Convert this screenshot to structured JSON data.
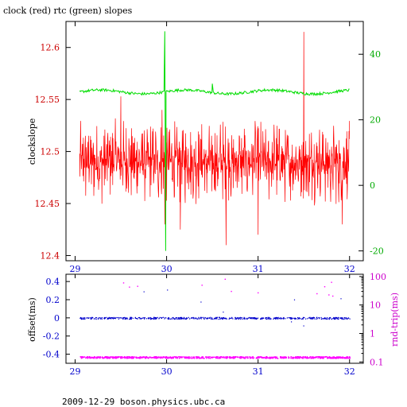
{
  "title": "clock (red) rtc (green) slopes",
  "footer": "2009-12-29  boson.physics.ubc.ca",
  "colors": {
    "clock": "#ff0000",
    "rtc": "#00dd00",
    "offset": "#0000cc",
    "rndtrip": "#ff00ff",
    "x_axis": "#0000cc",
    "left_axis_top": "#cc0000",
    "right_axis_top": "#00aa00",
    "left_axis_bottom": "#0000cc",
    "right_axis_bottom": "#cc00cc"
  },
  "chart_data": [
    {
      "type": "line",
      "title": "clock (red) rtc (green) slopes",
      "xlim": [
        28.9,
        32.15
      ],
      "xticks": [
        29,
        30,
        31,
        32
      ],
      "xtick_labels": [
        "29",
        "30",
        "31",
        "32"
      ],
      "left_axis": {
        "label": "clockslope",
        "ylim": [
          12.395,
          12.625
        ],
        "ticks": [
          12.4,
          12.45,
          12.5,
          12.55,
          12.6
        ],
        "tick_labels": [
          "12.4",
          "12.45",
          "12.5",
          "12.55",
          "12.6"
        ]
      },
      "right_axis": {
        "label": "",
        "ylim": [
          -23,
          50
        ],
        "ticks": [
          -20,
          0,
          20,
          40
        ],
        "tick_labels": [
          "-20",
          "0",
          "20",
          "40"
        ]
      },
      "series": [
        {
          "name": "clock",
          "axis": "left",
          "baseline": 12.49,
          "amplitude": 0.042,
          "x_start": 29.05,
          "x_end": 32.0,
          "spikes": [
            {
              "x": 29.5,
              "y": 12.553
            },
            {
              "x": 29.95,
              "y": 12.54
            },
            {
              "x": 29.98,
              "y": 12.43
            },
            {
              "x": 30.15,
              "y": 12.425
            },
            {
              "x": 30.65,
              "y": 12.41
            },
            {
              "x": 31.0,
              "y": 12.42
            },
            {
              "x": 31.5,
              "y": 12.615
            },
            {
              "x": 31.92,
              "y": 12.43
            }
          ]
        },
        {
          "name": "rtc",
          "axis": "right",
          "baseline": 28.5,
          "x_start": 29.05,
          "x_end": 32.0,
          "spikes": [
            {
              "x": 29.98,
              "y": 47
            },
            {
              "x": 29.99,
              "y": -20
            },
            {
              "x": 30.5,
              "y": 31
            }
          ]
        }
      ]
    },
    {
      "type": "scatter",
      "xlim": [
        28.9,
        32.15
      ],
      "xticks": [
        29,
        30,
        31,
        32
      ],
      "xtick_labels": [
        "29",
        "30",
        "31",
        "32"
      ],
      "left_axis": {
        "label": "offset(ms)",
        "ylim": [
          -0.5,
          0.48
        ],
        "ticks": [
          -0.4,
          -0.2,
          0,
          0.2,
          0.4
        ],
        "tick_labels": [
          "-0.4",
          "-0.2",
          "0",
          "0.2",
          "0.4"
        ]
      },
      "right_axis": {
        "label": "rnd-trip(ms)",
        "scale": "log",
        "ylim": [
          0.09,
          120
        ],
        "ticks": [
          0.1,
          1,
          10,
          100
        ],
        "tick_labels": [
          "0.1",
          "1",
          "10",
          "100"
        ]
      },
      "series": [
        {
          "name": "offset",
          "axis": "left",
          "baseline": 0.0,
          "x_start": 29.05,
          "x_end": 32.0
        },
        {
          "name": "rnd-trip",
          "axis": "right",
          "baseline": 0.15,
          "x_start": 29.05,
          "x_end": 32.0
        }
      ]
    }
  ]
}
